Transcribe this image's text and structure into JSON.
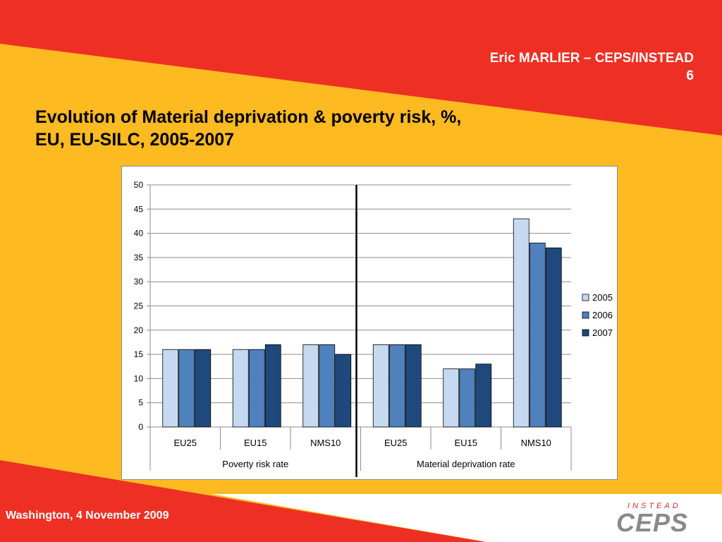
{
  "slide": {
    "author": "Eric MARLIER – CEPS/INSTEAD",
    "page_number": "6",
    "title_line1": "Evolution of Material deprivation & poverty risk, %,",
    "title_line2": "EU, EU-SILC, 2005-2007",
    "footer": "Washington, 4 November 2009",
    "logo_top": "INSTEAD",
    "logo_main": "CEPS"
  },
  "colors": {
    "red": "#ee3024",
    "yellow": "#fdba21",
    "series_2005": "#c6d9f1",
    "series_2006": "#4f81bd",
    "series_2007": "#1f497d"
  },
  "chart_data": {
    "type": "bar",
    "ylim": [
      0,
      50
    ],
    "yticks": [
      0,
      5,
      10,
      15,
      20,
      25,
      30,
      35,
      40,
      45,
      50
    ],
    "grid": true,
    "legend": "right",
    "categories": [
      "EU25",
      "EU15",
      "NMS10",
      "EU25",
      "EU15",
      "NMS10"
    ],
    "groups": [
      {
        "label": "Poverty risk rate",
        "count": 3
      },
      {
        "label": "Material deprivation rate",
        "count": 3
      }
    ],
    "series": [
      {
        "name": "2005",
        "values": [
          16,
          16,
          17,
          17,
          12,
          43
        ]
      },
      {
        "name": "2006",
        "values": [
          16,
          16,
          17,
          17,
          12,
          38
        ]
      },
      {
        "name": "2007",
        "values": [
          16,
          17,
          15,
          17,
          13,
          37
        ]
      }
    ]
  }
}
